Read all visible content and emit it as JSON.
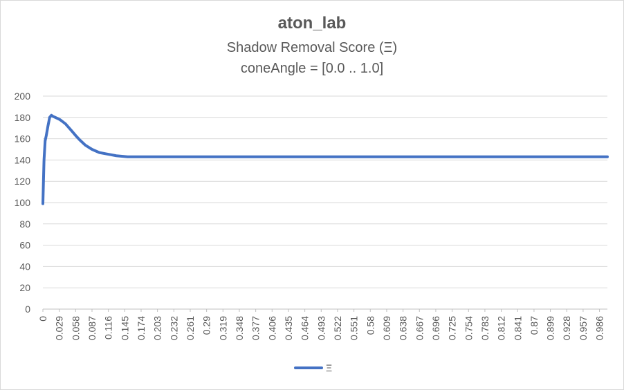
{
  "chart_data": {
    "type": "line",
    "title": "aton_lab",
    "subtitle_1": "Shadow Removal Score (Ξ)",
    "subtitle_2": "coneAngle = [0.0 .. 1.0]",
    "xlabel": "",
    "ylabel": "",
    "ylim": [
      0,
      200
    ],
    "xlim": [
      0,
      1
    ],
    "y_ticks": [
      0,
      20,
      40,
      60,
      80,
      100,
      120,
      140,
      160,
      180,
      200
    ],
    "x_tick_labels": [
      "0",
      "0.029",
      "0.058",
      "0.087",
      "0.116",
      "0.145",
      "0.174",
      "0.203",
      "0.232",
      "0.261",
      "0.29",
      "0.319",
      "0.348",
      "0.377",
      "0.406",
      "0.435",
      "0.464",
      "0.493",
      "0.522",
      "0.551",
      "0.58",
      "0.609",
      "0.638",
      "0.667",
      "0.696",
      "0.725",
      "0.754",
      "0.783",
      "0.812",
      "0.841",
      "0.87",
      "0.899",
      "0.928",
      "0.957",
      "0.986"
    ],
    "grid": true,
    "legend": "bottom",
    "series": [
      {
        "name": "Ξ",
        "color": "#4472c4",
        "x": [
          0,
          0.001,
          0.002,
          0.004,
          0.006,
          0.009,
          0.012,
          0.015,
          0.018,
          0.022,
          0.026,
          0.03,
          0.035,
          0.04,
          0.045,
          0.05,
          0.058,
          0.065,
          0.075,
          0.087,
          0.1,
          0.11,
          0.12,
          0.13,
          0.14,
          0.15,
          0.2,
          0.3,
          0.4,
          0.5,
          0.6,
          0.7,
          0.8,
          0.9,
          1.0
        ],
        "y": [
          99,
          120,
          140,
          158,
          163,
          172,
          180,
          182,
          181,
          180,
          179,
          178,
          176,
          174,
          171,
          168,
          163,
          159,
          154,
          150,
          147,
          146,
          145,
          144,
          143.5,
          143,
          143,
          143,
          143,
          143,
          143,
          143,
          143,
          143,
          143
        ]
      }
    ]
  }
}
